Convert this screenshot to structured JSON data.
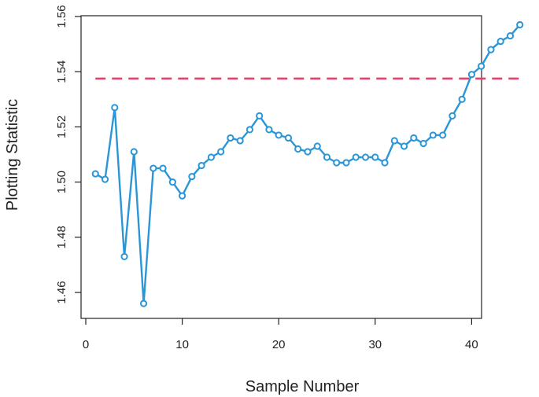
{
  "chart_data": {
    "type": "line",
    "xlabel": "Sample Number",
    "ylabel": "Plotting Statistic",
    "xlim": [
      0,
      45
    ],
    "ylim": [
      1.455,
      1.56
    ],
    "x_ticks": [
      0,
      10,
      20,
      30,
      40
    ],
    "x_tick_labels": [
      "0",
      "10",
      "20",
      "30",
      "40"
    ],
    "y_ticks": [
      1.46,
      1.48,
      1.5,
      1.52,
      1.54,
      1.56
    ],
    "y_tick_labels": [
      "1.46",
      "1.48",
      "1.50",
      "1.52",
      "1.54",
      "1.56"
    ],
    "grid": false,
    "series": [
      {
        "color": "#2a96d8",
        "marker": "open-circle",
        "x": [
          1,
          2,
          3,
          4,
          5,
          6,
          7,
          8,
          9,
          10,
          11,
          12,
          13,
          14,
          15,
          16,
          17,
          18,
          19,
          20,
          21,
          22,
          23,
          24,
          25,
          26,
          27,
          28,
          29,
          30,
          31,
          32,
          33,
          34,
          35,
          36,
          37,
          38,
          39,
          40,
          41,
          42,
          43,
          44,
          45
        ],
        "values": [
          1.503,
          1.501,
          1.527,
          1.473,
          1.511,
          1.456,
          1.505,
          1.505,
          1.5,
          1.495,
          1.502,
          1.506,
          1.509,
          1.511,
          1.516,
          1.515,
          1.519,
          1.524,
          1.519,
          1.517,
          1.516,
          1.512,
          1.511,
          1.513,
          1.509,
          1.507,
          1.507,
          1.509,
          1.509,
          1.509,
          1.507,
          1.515,
          1.513,
          1.516,
          1.514,
          1.517,
          1.517,
          1.524,
          1.53,
          1.539,
          1.542,
          1.548,
          1.551,
          1.553,
          1.557
        ]
      }
    ],
    "control_limit": {
      "value": 1.5375,
      "x_range": [
        1,
        45
      ],
      "color": "#e8416a",
      "style": "dashed"
    }
  }
}
